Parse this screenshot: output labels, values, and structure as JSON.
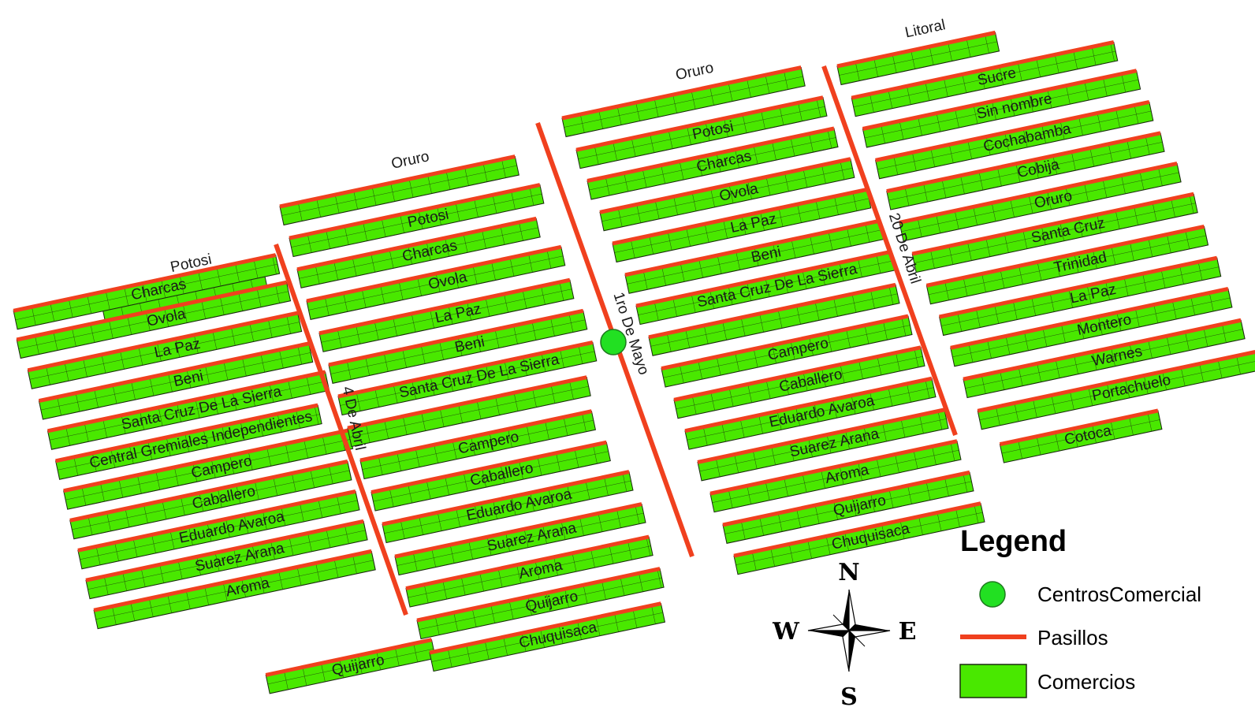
{
  "map": {
    "colors": {
      "comercio_fill": "#49e800",
      "comercio_grid": "#1a2a10",
      "pasillo": "#f0401e",
      "centro": "#22e022",
      "centro_stroke": "#1f7a1f"
    },
    "blocks": [
      {
        "aisles": [
          {
            "name": "4 De Abril"
          }
        ],
        "rows": [
          {
            "label": "Potosi"
          },
          {
            "label": "Charcas"
          },
          {
            "label": "Ovola"
          },
          {
            "label": "La Paz"
          },
          {
            "label": "Beni"
          },
          {
            "label": "Santa Cruz De La Sierra"
          },
          {
            "label": "Central Gremiales Independientes"
          },
          {
            "label": "Campero"
          },
          {
            "label": "Caballero"
          },
          {
            "label": "Eduardo Avaroa"
          },
          {
            "label": "Suarez Arana"
          },
          {
            "label": "Aroma"
          },
          {
            "label": "Quijarro"
          }
        ]
      },
      {
        "aisles": [
          {
            "name": "1ro De Mayo"
          }
        ],
        "rows": [
          {
            "label": "Oruro"
          },
          {
            "label": "Potosi"
          },
          {
            "label": "Charcas"
          },
          {
            "label": "Ovola"
          },
          {
            "label": "La Paz"
          },
          {
            "label": "Beni"
          },
          {
            "label": "Santa Cruz De La Sierra"
          },
          {
            "label": ""
          },
          {
            "label": "Campero"
          },
          {
            "label": "Caballero"
          },
          {
            "label": "Eduardo Avaroa"
          },
          {
            "label": "Suarez Arana"
          },
          {
            "label": "Aroma"
          },
          {
            "label": "Quijarro"
          },
          {
            "label": "Chuquisaca"
          }
        ]
      },
      {
        "aisles": [
          {
            "name": "20 De Abril"
          }
        ],
        "rows": [
          {
            "label": "Oruro"
          },
          {
            "label": "Potosi"
          },
          {
            "label": "Charcas"
          },
          {
            "label": "Ovola"
          },
          {
            "label": "La Paz"
          },
          {
            "label": "Beni"
          },
          {
            "label": "Santa Cruz De La Sierra"
          },
          {
            "label": ""
          },
          {
            "label": "Campero"
          },
          {
            "label": "Caballero"
          },
          {
            "label": "Eduardo Avaroa"
          },
          {
            "label": "Suarez Arana"
          },
          {
            "label": "Aroma"
          },
          {
            "label": "Quijarro"
          },
          {
            "label": "Chuquisaca"
          }
        ]
      },
      {
        "aisles": [],
        "rows": [
          {
            "label": "Litoral"
          },
          {
            "label": "Sucre"
          },
          {
            "label": "Sin nombre"
          },
          {
            "label": "Cochabamba"
          },
          {
            "label": "Cobija"
          },
          {
            "label": "Oruro"
          },
          {
            "label": "Santa Cruz"
          },
          {
            "label": "Trinidad"
          },
          {
            "label": "La Paz"
          },
          {
            "label": "Montero"
          },
          {
            "label": "Warnes"
          },
          {
            "label": "Portachuelo"
          },
          {
            "label": "Cotoca"
          }
        ]
      }
    ]
  },
  "legend": {
    "title": "Legend",
    "items": [
      {
        "label": "CentrosComercial",
        "symbol": "circle-icon"
      },
      {
        "label": "Pasillos",
        "symbol": "line-icon"
      },
      {
        "label": "Comercios",
        "symbol": "rect-icon"
      }
    ]
  },
  "compass": {
    "n": "N",
    "s": "S",
    "e": "E",
    "w": "W"
  }
}
